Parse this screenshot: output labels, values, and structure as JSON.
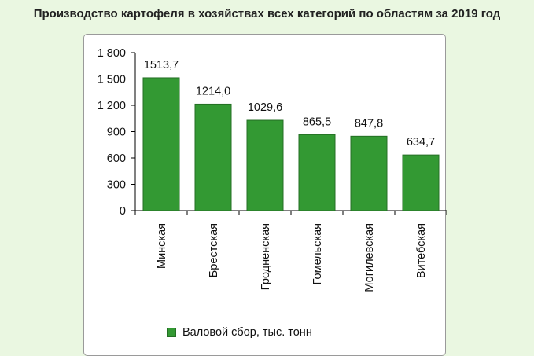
{
  "title": "Производство картофеля в хозяйствах всех категорий по областям за 2019 год",
  "colors": {
    "bar": "#339933",
    "bar_border": "#246f24",
    "background": "#eaf7e1"
  },
  "chart_data": {
    "type": "bar",
    "categories": [
      "Минская",
      "Брестская",
      "Гродненская",
      "Гомельская",
      "Могилевская",
      "Витебская"
    ],
    "series": [
      {
        "name": "Валовой сбор, тыс. тонн",
        "values": [
          1513.7,
          1214.0,
          1029.6,
          865.5,
          847.8,
          634.7
        ],
        "labels": [
          "1513,7",
          "1214,0",
          "1029,6",
          "865,5",
          "847,8",
          "634,7"
        ]
      }
    ],
    "ylim": [
      0,
      1800
    ],
    "yticks": [
      0,
      300,
      600,
      900,
      1200,
      1500,
      1800
    ],
    "ytick_labels": [
      "0",
      "300",
      "600",
      "900",
      "1 200",
      "1 500",
      "1 800"
    ],
    "legend_position": "bottom",
    "grid": false
  }
}
